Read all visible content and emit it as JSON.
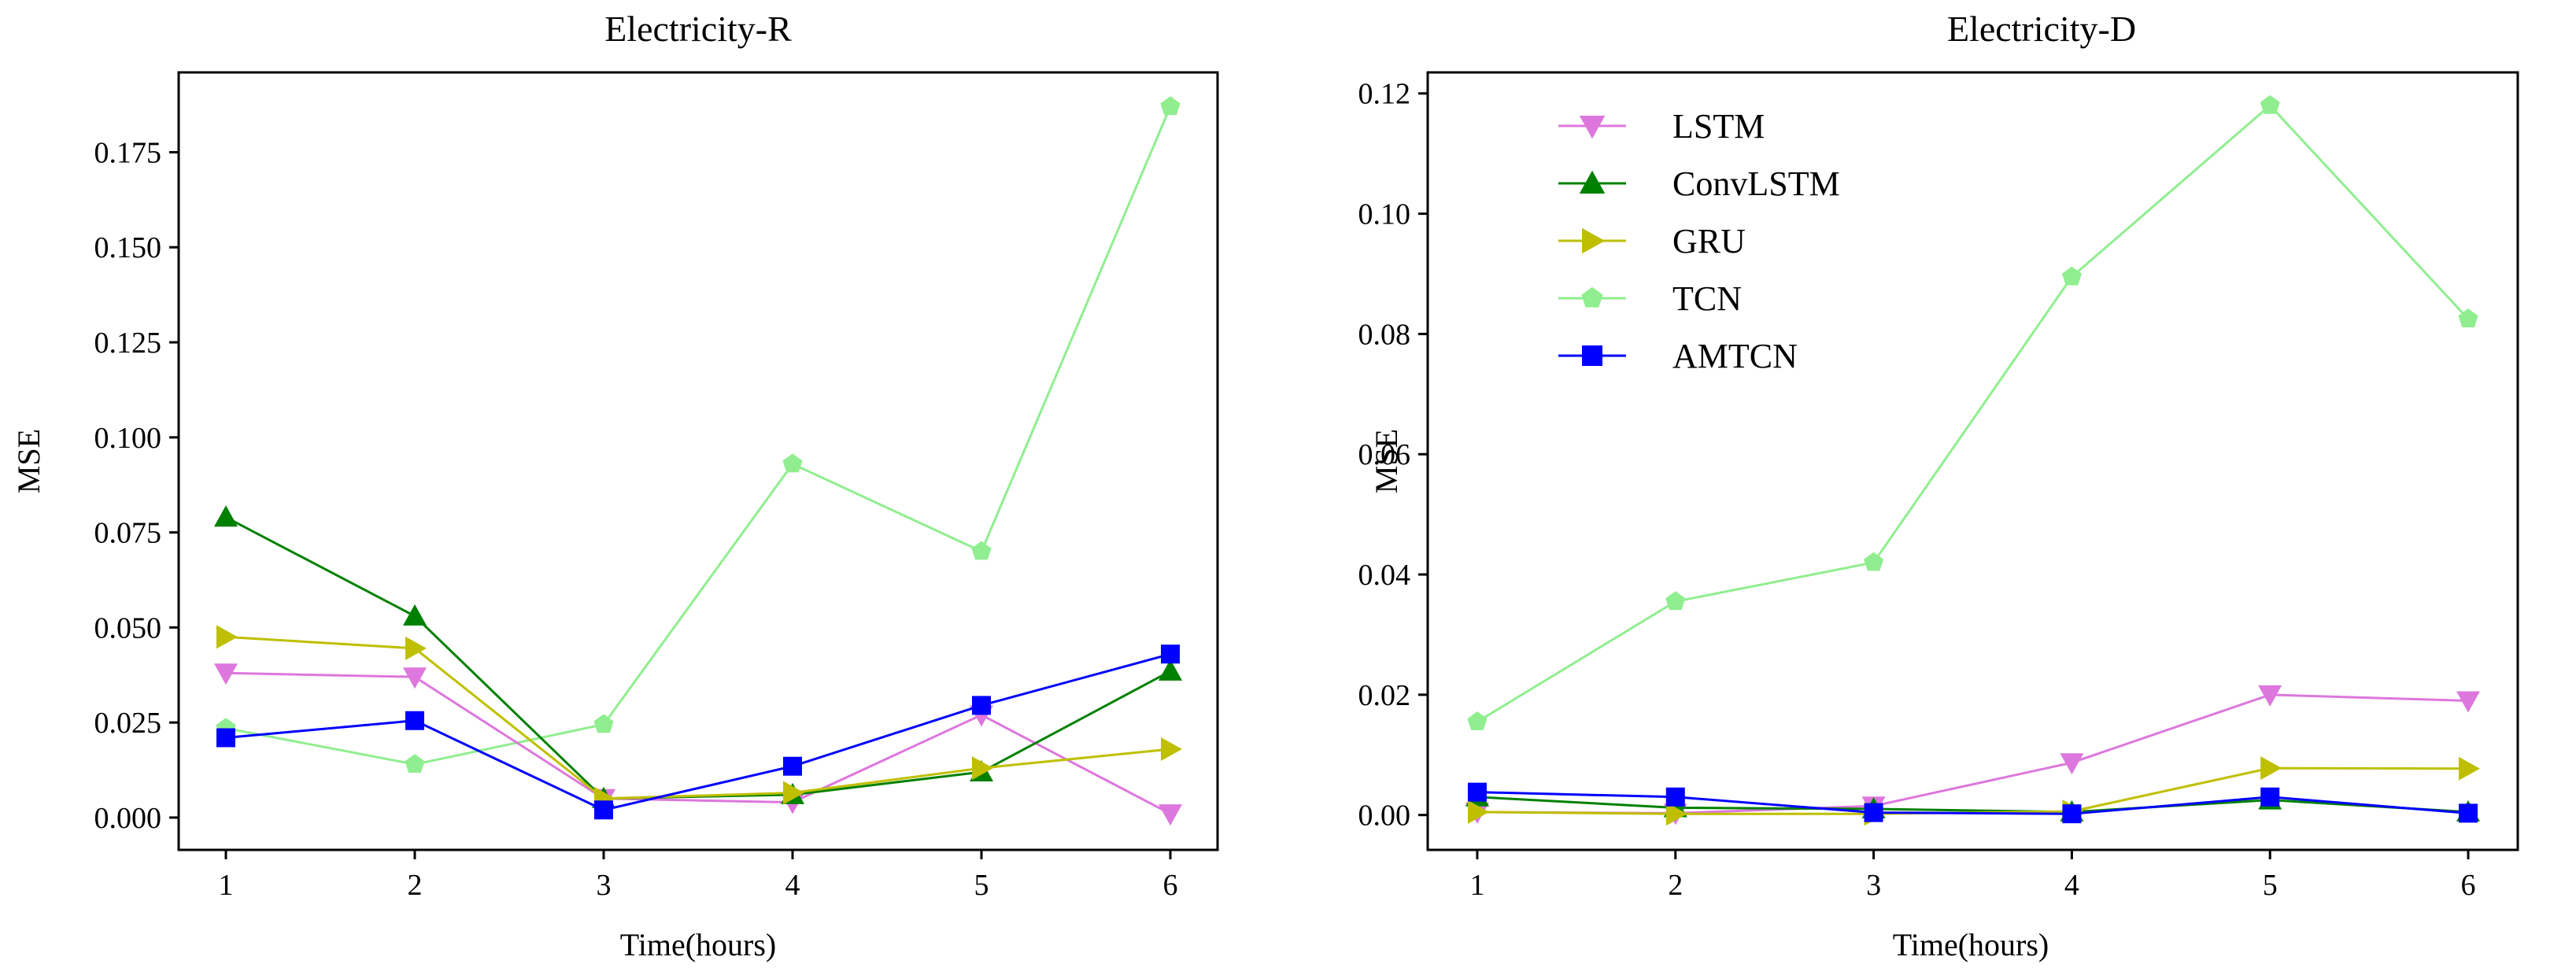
{
  "chart_data": [
    {
      "type": "line",
      "title": "Electricity-R",
      "xlabel": "Time(hours)",
      "ylabel": "MSE",
      "x": [
        1,
        2,
        3,
        4,
        5,
        6
      ],
      "xlim": [
        0.75,
        6.25
      ],
      "ylim": [
        -0.0085,
        0.196
      ],
      "yticks": [
        0.0,
        0.025,
        0.05,
        0.075,
        0.1,
        0.125,
        0.15,
        0.175
      ],
      "ytick_labels": [
        "0.000",
        "0.025",
        "0.050",
        "0.075",
        "0.100",
        "0.125",
        "0.150",
        "0.175"
      ],
      "legend": false,
      "series": [
        {
          "name": "TCN",
          "color": "#90ee90",
          "marker": "pentagon",
          "values": [
            0.0235,
            0.014,
            0.0245,
            0.093,
            0.07,
            0.187
          ]
        },
        {
          "name": "LSTM",
          "color": "#dd77dd",
          "marker": "triangle-down",
          "values": [
            0.038,
            0.037,
            0.005,
            0.004,
            0.027,
            0.001
          ]
        },
        {
          "name": "ConvLSTM",
          "color": "#008000",
          "marker": "triangle-up",
          "values": [
            0.079,
            0.053,
            0.005,
            0.006,
            0.012,
            0.0385
          ]
        },
        {
          "name": "GRU",
          "color": "#bfbf00",
          "marker": "triangle-right",
          "values": [
            0.0475,
            0.0445,
            0.005,
            0.0065,
            0.013,
            0.018
          ]
        },
        {
          "name": "AMTCN",
          "color": "#0000ff",
          "marker": "square",
          "values": [
            0.021,
            0.0255,
            0.002,
            0.0135,
            0.0295,
            0.043
          ]
        }
      ]
    },
    {
      "type": "line",
      "title": "Electricity-D",
      "xlabel": "Time(hours)",
      "ylabel": "MSE",
      "x": [
        1,
        2,
        3,
        4,
        5,
        6
      ],
      "xlim": [
        0.75,
        6.25
      ],
      "ylim": [
        -0.0058,
        0.1235
      ],
      "yticks": [
        0.0,
        0.02,
        0.04,
        0.06,
        0.08,
        0.1,
        0.12
      ],
      "ytick_labels": [
        "0.00",
        "0.02",
        "0.04",
        "0.06",
        "0.08",
        "0.10",
        "0.12"
      ],
      "legend": true,
      "legend_position": "top-left",
      "legend_order": [
        "LSTM",
        "ConvLSTM",
        "GRU",
        "TCN",
        "AMTCN"
      ],
      "series": [
        {
          "name": "TCN",
          "color": "#90ee90",
          "marker": "pentagon",
          "values": [
            0.0155,
            0.0355,
            0.042,
            0.0895,
            0.118,
            0.0825
          ]
        },
        {
          "name": "LSTM",
          "color": "#dd77dd",
          "marker": "triangle-down",
          "values": [
            0.0005,
            0.0003,
            0.0015,
            0.0087,
            0.02,
            0.019
          ]
        },
        {
          "name": "ConvLSTM",
          "color": "#008000",
          "marker": "triangle-up",
          "values": [
            0.003,
            0.0012,
            0.001,
            0.0005,
            0.0025,
            0.0005
          ]
        },
        {
          "name": "GRU",
          "color": "#bfbf00",
          "marker": "triangle-right",
          "values": [
            0.0005,
            0.0002,
            0.0002,
            0.0006,
            0.0078,
            0.0077
          ]
        },
        {
          "name": "AMTCN",
          "color": "#0000ff",
          "marker": "square",
          "values": [
            0.0038,
            0.003,
            0.0004,
            0.0002,
            0.003,
            0.0003
          ]
        }
      ]
    }
  ]
}
